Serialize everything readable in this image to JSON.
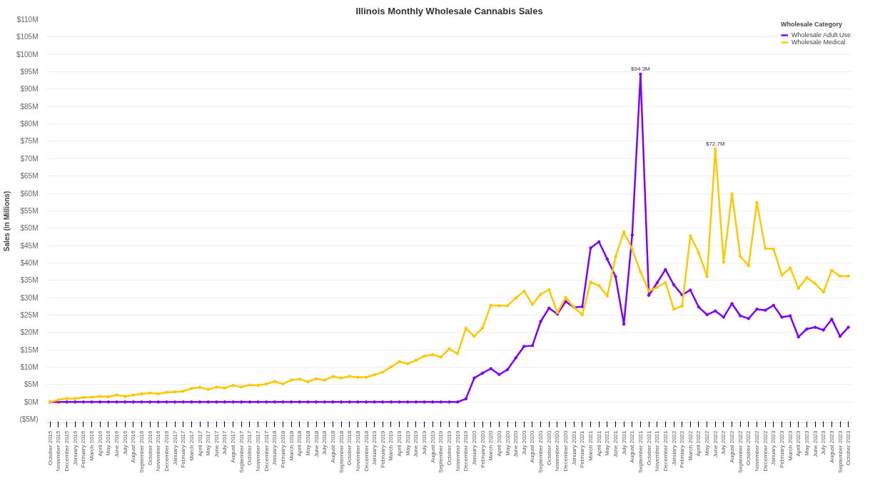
{
  "chart_data": {
    "type": "line",
    "title": "Illinois Monthly Wholesale Cannabis Sales",
    "ylabel": "Sales (in Millions)",
    "legend_title": "Wholesale Category",
    "legend": "top right",
    "grid": "y",
    "marker": "circle",
    "line_style": "solid",
    "categories": [
      "October 2015",
      "November 2015",
      "December 2015",
      "January 2016",
      "February 2016",
      "March 2016",
      "April 2016",
      "May 2016",
      "June 2016",
      "July 2016",
      "August 2016",
      "September 2016",
      "October 2016",
      "November 2016",
      "December 2016",
      "January 2017",
      "February 2017",
      "March 2017",
      "April 2017",
      "May 2017",
      "June 2017",
      "July 2017",
      "August 2017",
      "September 2017",
      "October 2017",
      "November 2017",
      "December 2017",
      "January 2018",
      "February 2018",
      "March 2018",
      "April 2018",
      "May 2018",
      "June 2018",
      "July 2018",
      "August 2018",
      "September 2018",
      "October 2018",
      "November 2018",
      "December 2018",
      "January 2019",
      "February 2019",
      "March 2019",
      "April 2019",
      "May 2019",
      "June 2019",
      "July 2019",
      "August 2019",
      "September 2019",
      "October 2019",
      "November 2019",
      "December 2019",
      "January 2020",
      "February 2020",
      "March 2020",
      "April 2020",
      "May 2020",
      "June 2020",
      "July 2020",
      "August 2020",
      "September 2020",
      "October 2020",
      "November 2020",
      "December 2020",
      "January 2021",
      "February 2021",
      "March 2021",
      "April 2021",
      "May 2021",
      "June 2021",
      "July 2021",
      "August 2021",
      "September 2021",
      "October 2021",
      "November 2021",
      "December 2021",
      "January 2022",
      "February 2022",
      "March 2022",
      "April 2022",
      "May 2022",
      "June 2022",
      "July 2022",
      "August 2022",
      "September 2022",
      "October 2022",
      "November 2022",
      "December 2022",
      "January 2023",
      "February 2023",
      "March 2023",
      "April 2023",
      "May 2023",
      "June 2023",
      "July 2023",
      "August 2023",
      "September 2023",
      "October 2023"
    ],
    "series": [
      {
        "name": "Wholesale Adult Use",
        "color": "#8000ff",
        "values": [
          0,
          0,
          0,
          0,
          0,
          0,
          0,
          0,
          0,
          0,
          0,
          0,
          0,
          0,
          0,
          0,
          0,
          0,
          0,
          0,
          0,
          0,
          0,
          0,
          0,
          0,
          0,
          0,
          0,
          0,
          0,
          0,
          0,
          0,
          0,
          0,
          0,
          0,
          0,
          0,
          0,
          0,
          0,
          0,
          0,
          0,
          0,
          0,
          0,
          0,
          0.9,
          6.9,
          8.3,
          9.6,
          7.9,
          9.3,
          12.7,
          16.0,
          16.2,
          23.2,
          27.0,
          25.3,
          28.9,
          27.2,
          27.4,
          44.3,
          46.1,
          41.1,
          36.1,
          22.4,
          48.0,
          94.3,
          30.7,
          34.3,
          38.1,
          33.7,
          30.8,
          32.2,
          27.3,
          25.1,
          26.2,
          24.4,
          28.3,
          24.8,
          24.0,
          26.7,
          26.4,
          27.8,
          24.4,
          24.8,
          18.7,
          21.0,
          21.5,
          20.7,
          23.8,
          18.9,
          21.5
        ]
      },
      {
        "name": "Wholesale Medical",
        "color": "#ffc800",
        "values": [
          0,
          0.6,
          1.0,
          1.0,
          1.3,
          1.4,
          1.6,
          1.5,
          2.0,
          1.6,
          2.0,
          2.3,
          2.6,
          2.3,
          2.8,
          2.9,
          3.1,
          3.9,
          4.2,
          3.6,
          4.3,
          4.0,
          4.8,
          4.3,
          4.9,
          4.8,
          5.2,
          5.9,
          5.2,
          6.3,
          6.6,
          5.8,
          6.7,
          6.3,
          7.3,
          6.9,
          7.4,
          7.1,
          7.1,
          7.8,
          8.6,
          10.1,
          11.6,
          11.0,
          12.0,
          13.2,
          13.6,
          12.9,
          15.3,
          13.9,
          21.2,
          18.9,
          21.3,
          27.8,
          27.7,
          27.7,
          29.9,
          31.9,
          28.1,
          31.0,
          32.3,
          25.7,
          30.1,
          27.2,
          25.1,
          34.5,
          33.5,
          30.5,
          41.8,
          48.9,
          44.0,
          37.4,
          31.9,
          33.0,
          34.4,
          26.7,
          27.6,
          47.8,
          42.9,
          36.1,
          72.7,
          40.2,
          59.9,
          41.9,
          39.2,
          57.4,
          44.2,
          44.0,
          36.5,
          38.6,
          32.7,
          35.8,
          34.1,
          31.6,
          37.9,
          36.2,
          36.2
        ]
      }
    ],
    "ylim": [
      -6,
      110
    ],
    "yticks": [
      {
        "value": -5,
        "label": "($5M)"
      },
      {
        "value": 0,
        "label": "$0M"
      },
      {
        "value": 5,
        "label": "$5M"
      },
      {
        "value": 10,
        "label": "$10M"
      },
      {
        "value": 15,
        "label": "$15M"
      },
      {
        "value": 20,
        "label": "$20M"
      },
      {
        "value": 25,
        "label": "$25M"
      },
      {
        "value": 30,
        "label": "$30M"
      },
      {
        "value": 35,
        "label": "$35M"
      },
      {
        "value": 40,
        "label": "$40M"
      },
      {
        "value": 45,
        "label": "$45M"
      },
      {
        "value": 50,
        "label": "$50M"
      },
      {
        "value": 55,
        "label": "$55M"
      },
      {
        "value": 60,
        "label": "$60M"
      },
      {
        "value": 65,
        "label": "$65M"
      },
      {
        "value": 70,
        "label": "$70M"
      },
      {
        "value": 75,
        "label": "$75M"
      },
      {
        "value": 80,
        "label": "$80M"
      },
      {
        "value": 85,
        "label": "$85M"
      },
      {
        "value": 90,
        "label": "$90M"
      },
      {
        "value": 95,
        "label": "$95M"
      },
      {
        "value": 100,
        "label": "$100M"
      },
      {
        "value": 105,
        "label": "$105M"
      },
      {
        "value": 110,
        "label": "$110M"
      }
    ],
    "annotations": [
      {
        "text": "$94.3M",
        "x": "September 2021",
        "y": 94.3
      },
      {
        "text": "$72.7M",
        "x": "June 2022",
        "y": 72.7
      }
    ]
  }
}
